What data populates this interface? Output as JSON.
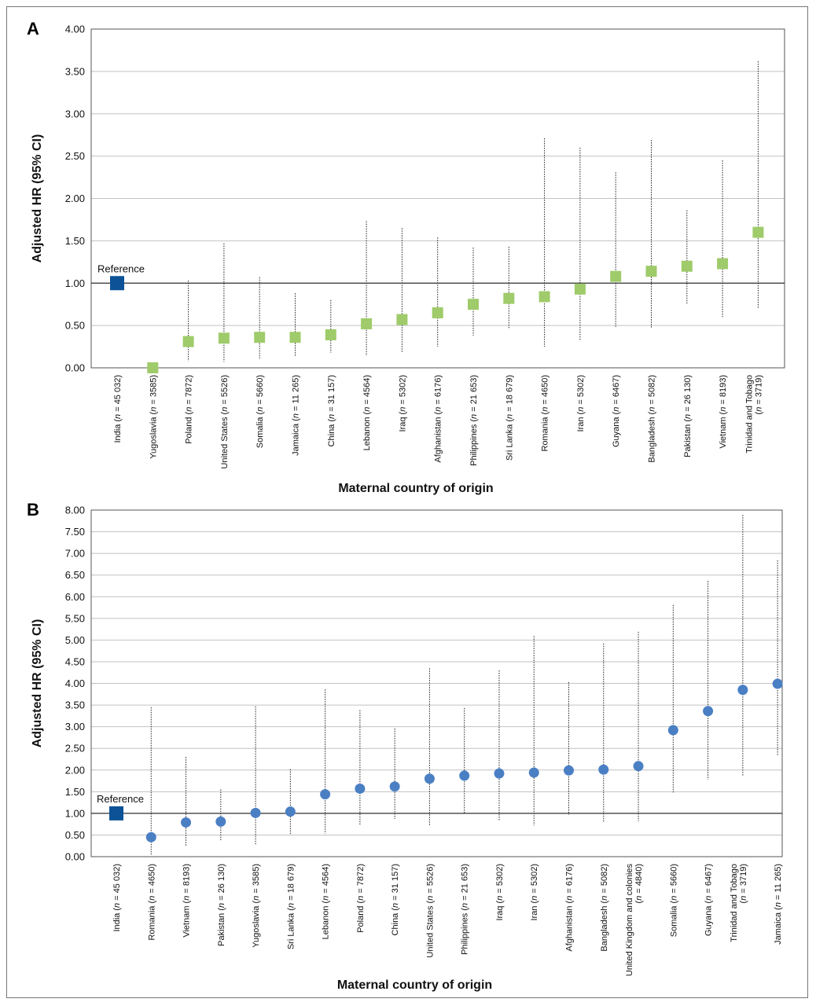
{
  "colors": {
    "reference": "#0d5296",
    "panel_a_marker": "#9fcb6a",
    "panel_b_marker": "#4a7fc4",
    "grid": "#c2c2c2",
    "ref_line": "#333333"
  },
  "chart_data": [
    {
      "type": "scatter",
      "panel": "A",
      "xlabel": "Maternal country of origin",
      "ylabel": "Adjusted HR (95% CI)",
      "ylim": [
        0,
        4
      ],
      "yticks": [
        "0.00",
        "0.50",
        "1.00",
        "1.50",
        "2.00",
        "2.50",
        "3.00",
        "3.50",
        "4.00"
      ],
      "reference_label": "Reference",
      "reference_value": 1.0,
      "grid": true,
      "categories": [
        [
          "India (",
          "n",
          " = 45 032)"
        ],
        [
          "Yugoslavia (",
          "n",
          " = 3585)"
        ],
        [
          "Poland (",
          "n",
          " = 7872)"
        ],
        [
          "United States (",
          "n",
          " = 5526)"
        ],
        [
          "Somalia (",
          "n",
          " = 5660)"
        ],
        [
          "Jamaica (",
          "n",
          " = 11 265)"
        ],
        [
          "China (",
          "n",
          " = 31 157)"
        ],
        [
          "Lebanon (",
          "n",
          " = 4564)"
        ],
        [
          "Iraq (",
          "n",
          " = 5302)"
        ],
        [
          "Afghanistan (",
          "n",
          " = 6176)"
        ],
        [
          "Philippines (",
          "n",
          " = 21 653)"
        ],
        [
          "Sri Lanka (",
          "n",
          " = 18 679)"
        ],
        [
          "Romania (",
          "n",
          " = 4650)"
        ],
        [
          "Iran (",
          "n",
          " = 5302)"
        ],
        [
          "Guyana (",
          "n",
          " = 6467)"
        ],
        [
          "Bangladesh (",
          "n",
          " = 5082)"
        ],
        [
          "Pakistan (",
          "n",
          " = 26 130)"
        ],
        [
          "Vietnam (",
          "n",
          " = 8193)"
        ],
        [
          "Trinidad and Tobago",
          "|",
          "(",
          "n",
          " = 3719)"
        ]
      ],
      "values": [
        1.0,
        0.0,
        0.31,
        0.35,
        0.36,
        0.36,
        0.39,
        0.52,
        0.57,
        0.65,
        0.75,
        0.82,
        0.84,
        0.93,
        1.08,
        1.14,
        1.2,
        1.23,
        1.6
      ],
      "ci_low": [
        null,
        null,
        0.08,
        0.07,
        0.11,
        0.13,
        0.18,
        0.14,
        0.18,
        0.25,
        0.38,
        0.46,
        0.25,
        0.32,
        0.48,
        0.47,
        0.75,
        0.6,
        0.7
      ],
      "ci_high": [
        null,
        null,
        1.03,
        1.47,
        1.07,
        0.88,
        0.8,
        1.73,
        1.65,
        1.54,
        1.42,
        1.43,
        2.71,
        2.6,
        2.31,
        2.69,
        1.86,
        2.45,
        3.62
      ]
    },
    {
      "type": "scatter",
      "panel": "B",
      "xlabel": "Maternal country of origin",
      "ylabel": "Adjusted HR (95% CI)",
      "ylim": [
        0,
        8
      ],
      "yticks": [
        "0.00",
        "0.50",
        "1.00",
        "1.50",
        "2.00",
        "2.50",
        "3.00",
        "3.50",
        "4.00",
        "4.50",
        "5.00",
        "5.50",
        "6.00",
        "6.50",
        "7.00",
        "7.50",
        "8.00"
      ],
      "reference_label": "Reference",
      "reference_value": 1.0,
      "grid": true,
      "categories": [
        [
          "India (",
          "n",
          " = 45 032)"
        ],
        [
          "Romania (",
          "n",
          " = 4650)"
        ],
        [
          "Vietnam (",
          "n",
          " = 8193)"
        ],
        [
          "Pakistan (",
          "n",
          " = 26 130)"
        ],
        [
          "Yugoslavia (",
          "n",
          " = 3585)"
        ],
        [
          "Sri Lanka (",
          "n",
          " = 18 679)"
        ],
        [
          "Lebanon (",
          "n",
          " = 4564)"
        ],
        [
          "Poland (",
          "n",
          " = 7872)"
        ],
        [
          "China (",
          "n",
          " = 31 157)"
        ],
        [
          "United States (",
          "n",
          " = 5526)"
        ],
        [
          "Philippines (",
          "n",
          " = 21 653)"
        ],
        [
          "Iraq (",
          "n",
          " = 5302)"
        ],
        [
          "Iran (",
          "n",
          " = 5302)"
        ],
        [
          "Afghanistan (",
          "n",
          " = 6176)"
        ],
        [
          "Bangladesh (",
          "n",
          " = 5082)"
        ],
        [
          "United Kingdom and colonies",
          "|",
          "(",
          "n",
          " = 4840)"
        ],
        [
          "Somalia (",
          "n",
          " = 5660)"
        ],
        [
          "Guyana (",
          "n",
          " = 6467)"
        ],
        [
          "Trinidad and Tobago",
          "|",
          "(",
          "n",
          " = 3719)"
        ],
        [
          "Jamaica (",
          "n",
          " = 11 265)"
        ]
      ],
      "values": [
        1.0,
        0.45,
        0.79,
        0.81,
        1.01,
        1.04,
        1.44,
        1.57,
        1.62,
        1.8,
        1.87,
        1.92,
        1.94,
        1.99,
        2.01,
        2.09,
        2.92,
        3.36,
        3.85,
        3.99
      ],
      "ci_low": [
        null,
        0.05,
        0.25,
        0.38,
        0.28,
        0.5,
        0.53,
        0.72,
        0.87,
        0.72,
        1.0,
        0.82,
        0.72,
        0.97,
        0.8,
        0.82,
        1.46,
        1.78,
        1.86,
        2.33
      ],
      "ci_high": [
        null,
        3.45,
        2.3,
        1.55,
        3.47,
        2.02,
        3.86,
        3.38,
        2.96,
        4.35,
        3.43,
        4.3,
        5.09,
        4.03,
        4.92,
        5.19,
        5.81,
        6.36,
        7.89,
        6.84
      ]
    }
  ]
}
